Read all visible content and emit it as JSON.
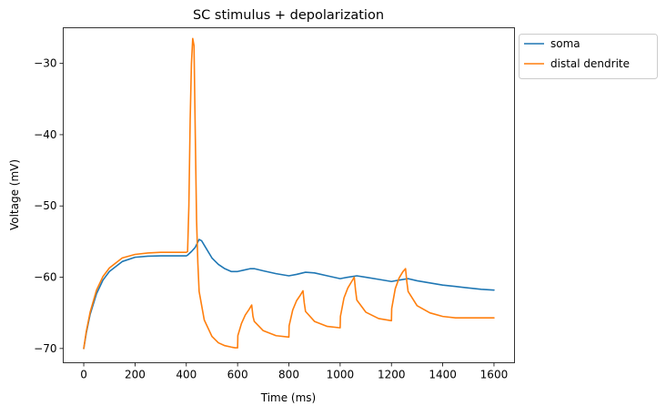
{
  "chart_data": {
    "type": "line",
    "title": "SC stimulus + depolarization",
    "xlabel": "Time (ms)",
    "ylabel": "Voltage (mV)",
    "xlim": [
      -80,
      1680
    ],
    "ylim": [
      -72.0,
      -25.0
    ],
    "xticks": [
      0,
      200,
      400,
      600,
      800,
      1000,
      1200,
      1400,
      1600
    ],
    "xtick_labels": [
      "0",
      "200",
      "400",
      "600",
      "800",
      "1000",
      "1200",
      "1400",
      "1600"
    ],
    "yticks": [
      -70,
      -60,
      -50,
      -40,
      -30
    ],
    "ytick_labels": [
      "−70",
      "−60",
      "−50",
      "−40",
      "−30"
    ],
    "grid": false,
    "legend": {
      "placement": "outside-upper-right",
      "entries": [
        "soma",
        "distal dendrite"
      ]
    },
    "series": [
      {
        "name": "soma",
        "color": "#1f77b4",
        "x": [
          0,
          10,
          25,
          50,
          75,
          100,
          150,
          200,
          250,
          300,
          350,
          400,
          405,
          420,
          435,
          450,
          460,
          475,
          500,
          525,
          550,
          575,
          600,
          625,
          650,
          665,
          700,
          750,
          800,
          830,
          865,
          900,
          950,
          1000,
          1030,
          1065,
          1100,
          1150,
          1200,
          1230,
          1265,
          1300,
          1350,
          1400,
          1450,
          1500,
          1550,
          1600
        ],
        "y": [
          -70.0,
          -67.8,
          -65.2,
          -62.3,
          -60.4,
          -59.2,
          -57.8,
          -57.2,
          -57.05,
          -57.0,
          -57.0,
          -57.0,
          -56.9,
          -56.4,
          -55.8,
          -54.7,
          -54.9,
          -55.8,
          -57.3,
          -58.2,
          -58.8,
          -59.2,
          -59.2,
          -59.0,
          -58.8,
          -58.8,
          -59.1,
          -59.5,
          -59.8,
          -59.6,
          -59.3,
          -59.4,
          -59.8,
          -60.2,
          -60.0,
          -59.8,
          -60.0,
          -60.3,
          -60.6,
          -60.4,
          -60.2,
          -60.5,
          -60.8,
          -61.1,
          -61.3,
          -61.5,
          -61.7,
          -61.8
        ]
      },
      {
        "name": "distal dendrite",
        "color": "#ff7f0e",
        "x": [
          0,
          10,
          25,
          50,
          75,
          100,
          150,
          200,
          250,
          300,
          350,
          400,
          405,
          410,
          415,
          420,
          425,
          430,
          435,
          440,
          445,
          450,
          470,
          500,
          525,
          550,
          575,
          590,
          600,
          601,
          615,
          630,
          645,
          655,
          660,
          665,
          700,
          750,
          800,
          801,
          815,
          830,
          845,
          855,
          860,
          865,
          900,
          950,
          1000,
          1001,
          1015,
          1030,
          1045,
          1055,
          1060,
          1065,
          1100,
          1150,
          1200,
          1201,
          1215,
          1230,
          1245,
          1255,
          1260,
          1265,
          1300,
          1350,
          1400,
          1450,
          1500,
          1550,
          1600
        ],
        "y": [
          -70.0,
          -67.6,
          -64.9,
          -61.8,
          -59.9,
          -58.7,
          -57.3,
          -56.8,
          -56.6,
          -56.5,
          -56.5,
          -56.5,
          -56.4,
          -50.0,
          -38.0,
          -30.0,
          -26.5,
          -27.5,
          -40.0,
          -52.0,
          -58.0,
          -62.0,
          -66.0,
          -68.3,
          -69.2,
          -69.6,
          -69.8,
          -69.9,
          -69.9,
          -68.2,
          -66.5,
          -65.3,
          -64.5,
          -63.9,
          -65.5,
          -66.2,
          -67.5,
          -68.2,
          -68.4,
          -66.8,
          -64.6,
          -63.3,
          -62.5,
          -61.9,
          -63.6,
          -64.8,
          -66.2,
          -66.9,
          -67.1,
          -65.5,
          -62.9,
          -61.5,
          -60.6,
          -60.0,
          -61.8,
          -63.2,
          -64.9,
          -65.8,
          -66.1,
          -64.4,
          -61.6,
          -60.1,
          -59.2,
          -58.8,
          -60.6,
          -62.0,
          -64.0,
          -65.0,
          -65.5,
          -65.7,
          -65.7,
          -65.7,
          -65.7
        ]
      }
    ]
  }
}
